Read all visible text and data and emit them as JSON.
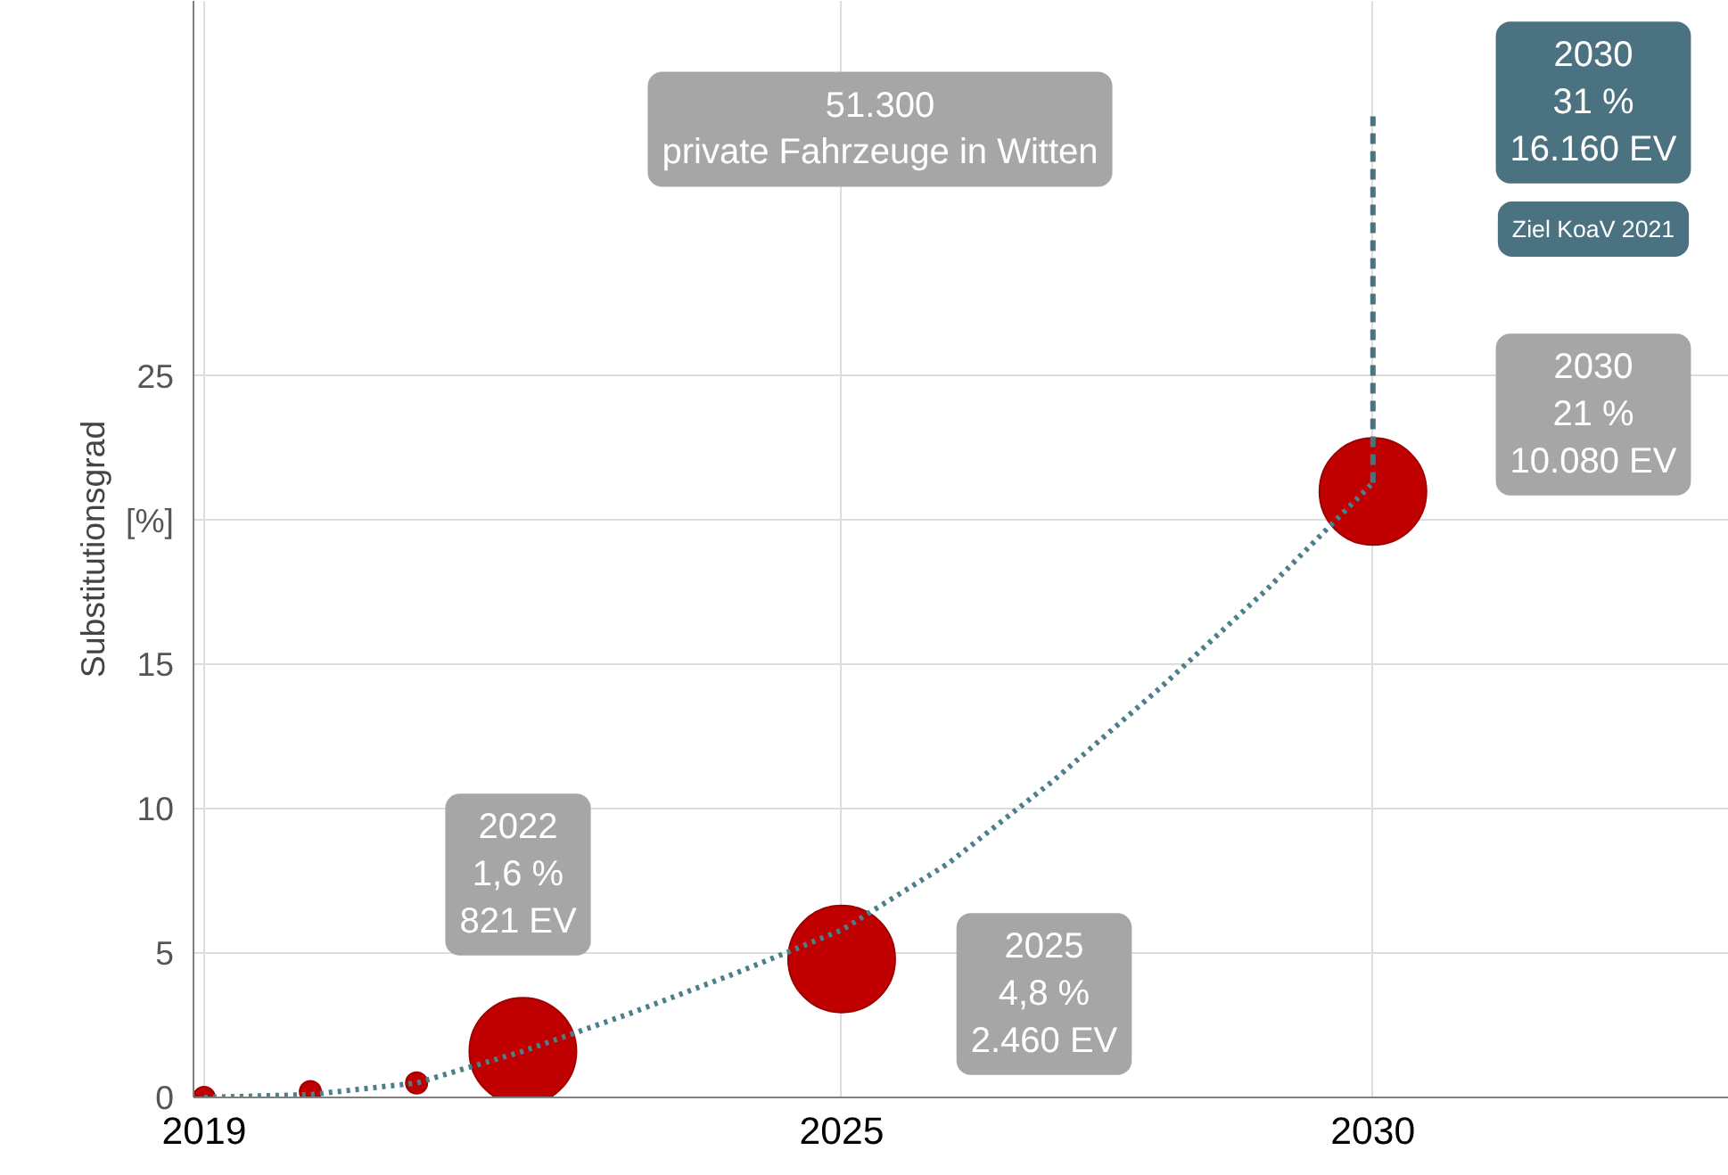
{
  "chart_data": {
    "type": "bubble",
    "ylabel": "Substitutionsgrad",
    "x": [
      2019,
      2020,
      2021,
      2022,
      2025,
      2030
    ],
    "values": [
      0,
      0.2,
      0.5,
      1.6,
      4.8,
      21
    ],
    "sizes": [
      0.04,
      0.04,
      0.04,
      1,
      1,
      1
    ],
    "color": "#c00000",
    "series": [
      {
        "type": "line",
        "line_style": "dotted",
        "color": "#4a7f8c",
        "x": [
          2019,
          2020,
          2021,
          2022,
          2023,
          2024,
          2025,
          2026,
          2027,
          2028,
          2029,
          2030
        ],
        "values": [
          0,
          0.1,
          0.5,
          1.6,
          2.9,
          4.3,
          5.8,
          8.1,
          11.0,
          14.2,
          17.6,
          21.3
        ]
      },
      {
        "type": "line",
        "line_style": "dashed",
        "color": "#4a7280",
        "x": [
          2030,
          2030
        ],
        "values": [
          21.3,
          34
        ]
      }
    ],
    "xlim": [
      2018.9,
      2033.35
    ],
    "ylim": [
      0,
      38
    ],
    "xticks": [
      2019,
      2025,
      2030
    ],
    "yticks": [
      0,
      5,
      10,
      15,
      {
        "value": 20,
        "label": "[%]"
      },
      25
    ],
    "grid": true,
    "annotations": [
      "51.300\nprivate Fahrzeuge in Witten",
      "2030\n31 %\n16.160 EV",
      "Ziel KoaV 2021",
      "2030\n21 %\n10.080 EV",
      "2022\n1,6 %\n821 EV",
      "2025\n4,8 %\n2.460 EV"
    ]
  }
}
